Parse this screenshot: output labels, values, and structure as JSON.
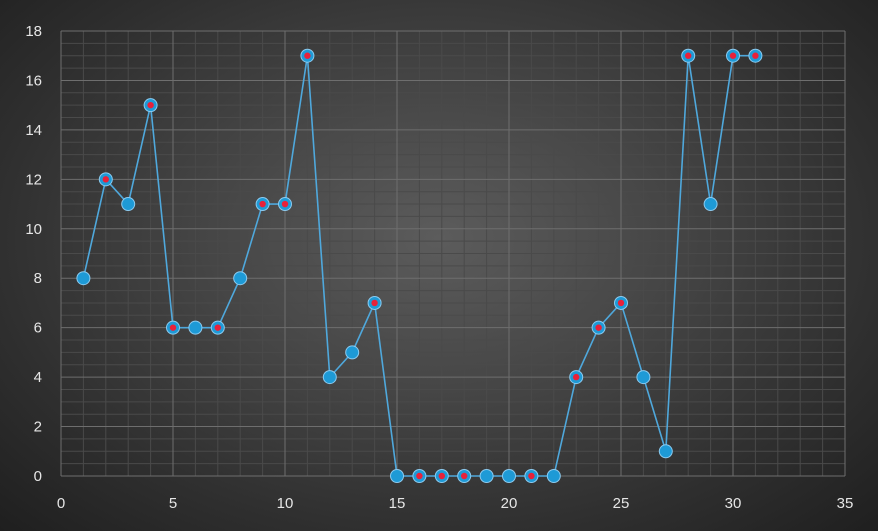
{
  "chart_data": {
    "type": "scatter",
    "title": "",
    "xlabel": "",
    "ylabel": "",
    "xlim": [
      0,
      35
    ],
    "ylim": [
      0,
      18
    ],
    "x_ticks": [
      0,
      5,
      10,
      15,
      20,
      25,
      30,
      35
    ],
    "y_ticks": [
      0,
      2,
      4,
      6,
      8,
      10,
      12,
      14,
      16,
      18
    ],
    "grid": true,
    "minor_grid": true,
    "legend": "none",
    "line_style": "straight lines with markers",
    "colors": {
      "line": "#4fa8dc",
      "marker_fill": "#1e9ad6",
      "marker_stroke": "#8ccbf0",
      "highlight_dot": "#e8213a",
      "grid_major": "#6e6e6e",
      "grid_minor": "#4a4a4a",
      "tick_text": "#e6e6e6"
    },
    "series": [
      {
        "x": [
          1,
          2,
          3,
          4,
          5,
          6,
          7,
          8,
          9,
          10,
          11,
          12,
          13,
          14,
          15,
          16,
          17,
          18,
          19,
          20,
          21,
          22,
          23,
          24,
          25,
          26,
          27,
          28,
          29,
          30,
          31
        ],
        "y": [
          8,
          12,
          11,
          15,
          6,
          6,
          6,
          8,
          11,
          11,
          17,
          4,
          5,
          7,
          0,
          0,
          0,
          0,
          0,
          0,
          0,
          0,
          4,
          6,
          7,
          4,
          1,
          17,
          11,
          17,
          17
        ],
        "highlighted": [
          false,
          true,
          false,
          true,
          true,
          false,
          true,
          false,
          true,
          true,
          true,
          false,
          false,
          true,
          false,
          true,
          true,
          true,
          false,
          false,
          true,
          false,
          true,
          true,
          true,
          false,
          false,
          true,
          false,
          true,
          true
        ]
      }
    ]
  }
}
